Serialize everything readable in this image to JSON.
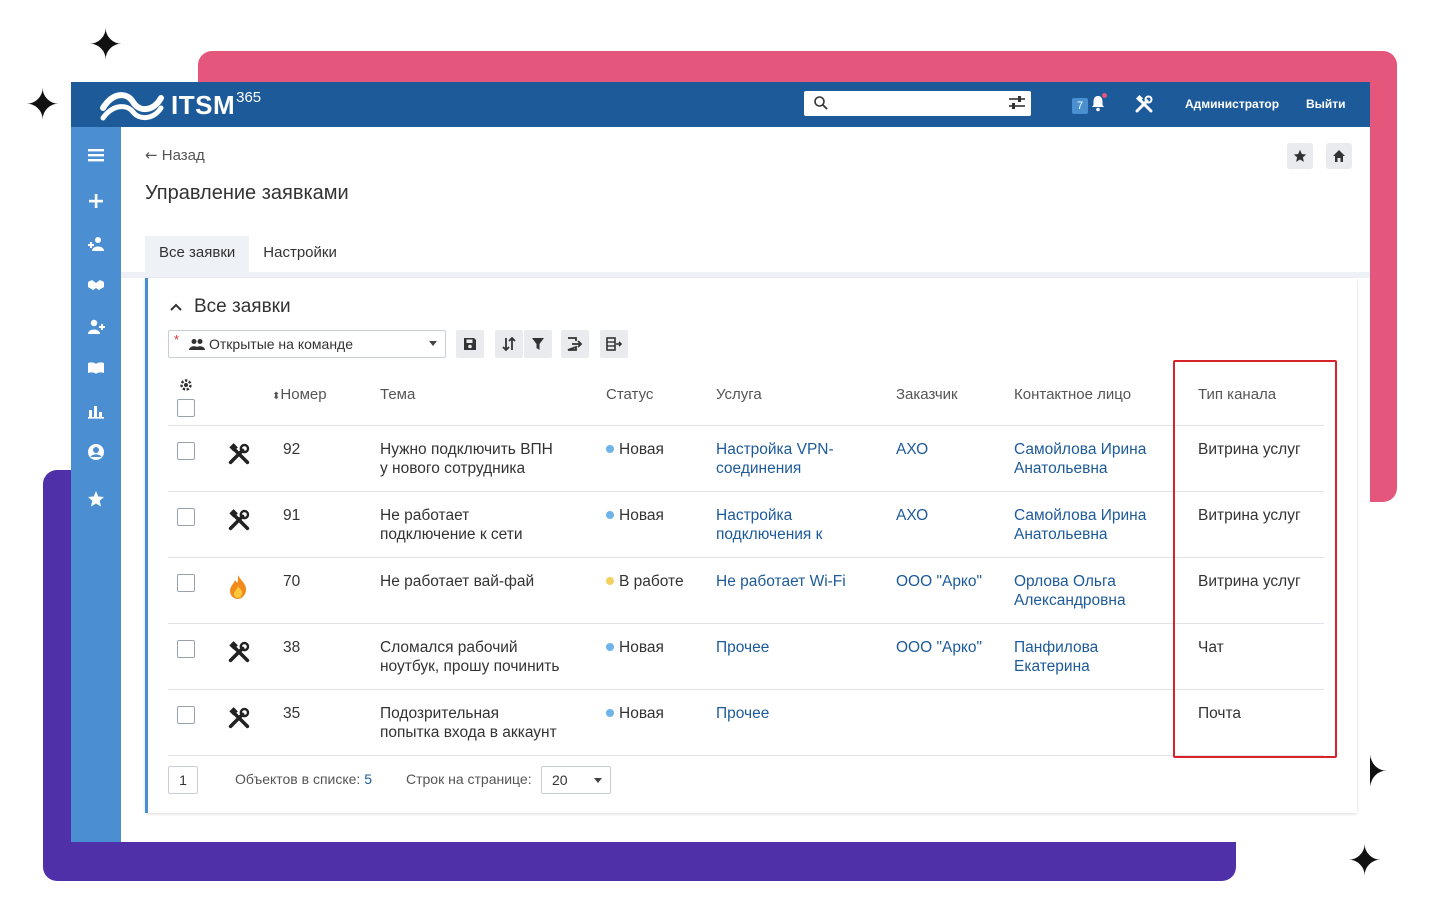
{
  "brand": {
    "name": "ITSM",
    "version": "365"
  },
  "topbar": {
    "notifications_count": "7",
    "user_label": "Администратор",
    "logout_label": "Выйти"
  },
  "nav": {
    "back_label": "Назад"
  },
  "page": {
    "title": "Управление заявками"
  },
  "tabs": [
    {
      "label": "Все заявки"
    },
    {
      "label": "Настройки"
    }
  ],
  "panel": {
    "title": "Все заявки",
    "filter": {
      "selected": "Открытые на команде"
    }
  },
  "table": {
    "columns": {
      "number": "Номер",
      "subject": "Тема",
      "status": "Статус",
      "service": "Услуга",
      "customer": "Заказчик",
      "contact": "Контактное лицо",
      "channel": "Тип канала"
    },
    "rows": [
      {
        "icon": "tools-icon",
        "number": "92",
        "subject": [
          "Нужно подключить ВПН",
          "у нового сотрудника"
        ],
        "status": "Новая",
        "status_color": "#6fb3e8",
        "service": [
          "Настройка VPN-",
          "соединения"
        ],
        "customer": "АХО",
        "contact": [
          "Самойлова Ирина",
          "Анатольевна"
        ],
        "channel": "Витрина услуг"
      },
      {
        "icon": "tools-icon",
        "number": "91",
        "subject": [
          "Не работает",
          "подключение к сети"
        ],
        "status": "Новая",
        "status_color": "#6fb3e8",
        "service": [
          "Настройка",
          "подключения к"
        ],
        "customer": "АХО",
        "contact": [
          "Самойлова Ирина",
          "Анатольевна"
        ],
        "channel": "Витрина услуг"
      },
      {
        "icon": "fire-icon",
        "number": "70",
        "subject": [
          "Не работает вай-фай",
          ""
        ],
        "status": "В работе",
        "status_color": "#f2d15c",
        "service": [
          "Не работает Wi-Fi",
          ""
        ],
        "customer": "ООО \"Арко\"",
        "contact": [
          "Орлова Ольга",
          "Александровна"
        ],
        "channel": "Витрина услуг"
      },
      {
        "icon": "tools-icon",
        "number": "38",
        "subject": [
          "Сломался рабочий",
          "ноутбук, прошу починить"
        ],
        "status": "Новая",
        "status_color": "#6fb3e8",
        "service": [
          "Прочее",
          ""
        ],
        "customer": "ООО \"Арко\"",
        "contact": [
          "Панфилова",
          "Екатерина"
        ],
        "channel": "Чат"
      },
      {
        "icon": "tools-icon",
        "number": "35",
        "subject": [
          "Подозрительная",
          "попытка входа в аккаунт"
        ],
        "status": "Новая",
        "status_color": "#6fb3e8",
        "service": [
          "Прочее",
          ""
        ],
        "customer": "",
        "contact": [
          "",
          ""
        ],
        "channel": "Почта"
      }
    ]
  },
  "pager": {
    "page": "1",
    "count_label": "Объектов в списке:",
    "count": "5",
    "rows_label": "Строк на странице:",
    "rows_value": "20"
  },
  "colors": {
    "topbar": "#1d5a9a",
    "sidebar": "#4b8fd2",
    "highlight": "#d9232a",
    "deco_pink": "#e4567b",
    "deco_purple": "#5030a8"
  }
}
